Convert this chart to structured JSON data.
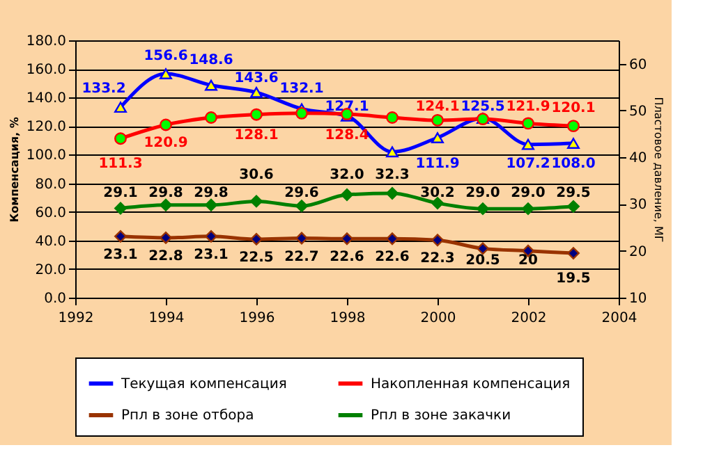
{
  "chart_data": {
    "type": "line",
    "ylabel": "Компенсация, %",
    "y2label": "Пластовое давление, МГ",
    "x": [
      1993,
      1994,
      1995,
      1996,
      1997,
      1998,
      1999,
      2000,
      2001,
      2002,
      2003
    ],
    "xlim": [
      1992,
      2004
    ],
    "xticks": [
      1992,
      1994,
      1996,
      1998,
      2000,
      2002,
      2004
    ],
    "ylim": [
      0,
      180
    ],
    "yticks": [
      {
        "value": 0,
        "label": "0.0"
      },
      {
        "value": 20,
        "label": "20.0"
      },
      {
        "value": 40,
        "label": "40.0"
      },
      {
        "value": 60,
        "label": "60.0"
      },
      {
        "value": 80,
        "label": "80.0"
      },
      {
        "value": 100,
        "label": "100.0"
      },
      {
        "value": 120,
        "label": "120.0"
      },
      {
        "value": 140,
        "label": "140.0"
      },
      {
        "value": 160,
        "label": "160.0"
      },
      {
        "value": 180,
        "label": "180.0"
      }
    ],
    "y2lim": [
      10,
      65
    ],
    "y2ticks": [
      10,
      20,
      30,
      40,
      50,
      60
    ],
    "grid": "y",
    "legend": "bottom",
    "series": [
      {
        "name": "Текущая компенсация",
        "color": "#0000ff",
        "colors": [
          "#ffff00",
          "#ffff00",
          "#ffff00",
          "#ffff00",
          "#ffff00",
          "#ffff00",
          "#ffff00",
          "#ffff00",
          "#ffff00",
          "#ffff00",
          "#ffff00"
        ],
        "marker": "triangle",
        "values": [
          133.2,
          156.6,
          148.6,
          143.6,
          132.1,
          127.1,
          102,
          111.9,
          125.5,
          107.2,
          108.0
        ],
        "value_labels": [
          "133.2",
          "156.6",
          "148.6",
          "143.6",
          "132.1",
          "127.1",
          null,
          "111.9",
          "125.5",
          "107.2",
          "108.0"
        ]
      },
      {
        "name": "Накопленная компенсация",
        "color": "#ff0000",
        "colors": [
          "#00ff00",
          "#00ff00",
          "#00ff00",
          "#00ff00",
          "#00ff00",
          "#00ff00",
          "#00ff00",
          "#00ff00",
          "#00ff00",
          "#00ff00",
          "#00ff00"
        ],
        "marker": "circle",
        "values": [
          111.3,
          120.9,
          126,
          128.1,
          129,
          128.4,
          126,
          124.1,
          125,
          121.9,
          120.1
        ],
        "value_labels": [
          "111.3",
          "120.9",
          null,
          "128.1",
          null,
          "128.4",
          null,
          "124.1",
          null,
          "121.9",
          "120.1"
        ]
      },
      {
        "name": "Рпл в зоне отбора",
        "color": "#993300",
        "colors": [
          "#000080",
          "#000080",
          "#000080",
          "#000080",
          "#000080",
          "#000080",
          "#000080",
          "#000080",
          "#000080",
          "#000080",
          "#000080"
        ],
        "marker": "diamond",
        "axis": "y2",
        "values": [
          23.1,
          22.8,
          23.1,
          22.5,
          22.7,
          22.6,
          22.6,
          22.3,
          20.5,
          20,
          19.5
        ],
        "value_labels": [
          "23.1",
          "22.8",
          "23.1",
          "22.5",
          "22.7",
          "22.6",
          "22.6",
          "22.3",
          "20.5",
          "20",
          "19.5"
        ]
      },
      {
        "name": "Рпл в зоне закачки",
        "color": "#008000",
        "colors": [
          "#008000",
          "#008000",
          "#008000",
          "#008000",
          "#008000",
          "#008000",
          "#008000",
          "#008000",
          "#008000",
          "#008000",
          "#008000"
        ],
        "marker": "diamond",
        "axis": "y2",
        "values": [
          29.1,
          29.8,
          29.8,
          30.6,
          29.6,
          32.0,
          32.3,
          30.2,
          29.0,
          29.0,
          29.5
        ],
        "value_labels": [
          "29.1",
          "29.8",
          "29.8",
          "30.6",
          "29.6",
          "32.0",
          "32.3",
          "30.2",
          "29.0",
          "29.0",
          "29.5"
        ]
      }
    ]
  }
}
